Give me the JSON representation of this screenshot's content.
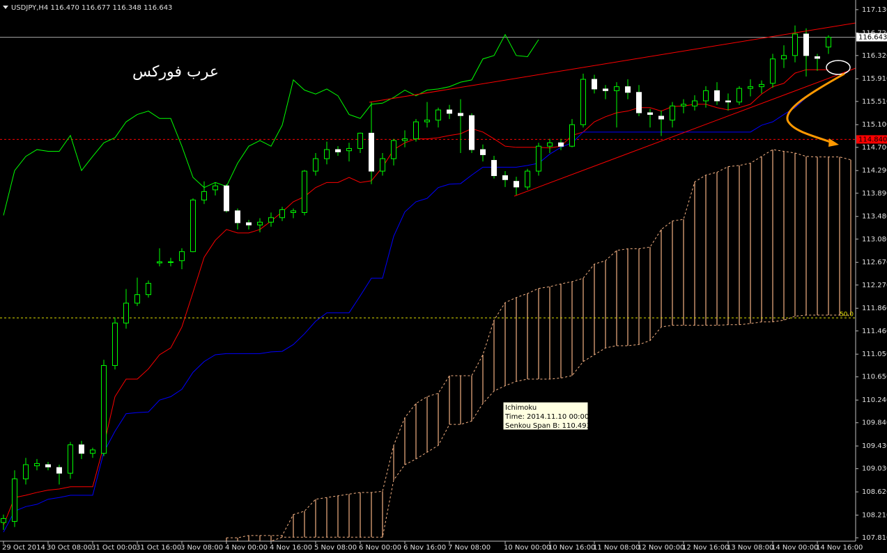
{
  "chart_data": {
    "type": "candlestick",
    "header": "USDJPY,H4  116.470 116.677 116.348 116.643",
    "annotation": "عرب فوركس",
    "tooltip": {
      "title": "Ichimoku",
      "time": "Time: 2014.11.10 00:00",
      "value": "Senkou Span B: 110.493"
    },
    "categories": [
      "29 Oct 2014",
      null,
      null,
      null,
      "30 Oct 08:00",
      null,
      null,
      null,
      "31 Oct 00:00",
      null,
      null,
      null,
      "31 Oct 16:00",
      null,
      null,
      null,
      "3 Nov 08:00",
      null,
      null,
      null,
      "4 Nov 00:00",
      null,
      null,
      null,
      "4 Nov 16:00",
      null,
      null,
      null,
      "5 Nov 08:00",
      null,
      null,
      null,
      "6 Nov 00:00",
      null,
      null,
      null,
      "6 Nov 16:00",
      null,
      null,
      null,
      "7 Nov 08:00",
      null,
      null,
      null,
      null,
      "10 Nov 00:00",
      null,
      null,
      null,
      "10 Nov 16:00",
      null,
      null,
      null,
      "11 Nov 08:00",
      null,
      null,
      null,
      "12 Nov 00:00",
      null,
      null,
      null,
      "12 Nov 16:00",
      null,
      null,
      null,
      "13 Nov 08:00",
      null,
      null,
      null,
      "14 Nov 00:00",
      null,
      null,
      null,
      "14 Nov 16:00",
      null,
      null,
      null
    ],
    "open": [
      108.08,
      108.1,
      108.85,
      109.08,
      109.1,
      109.05,
      108.95,
      109.45,
      109.3,
      109.3,
      110.85,
      111.6,
      111.95,
      112.1,
      112.66,
      112.67,
      112.7,
      112.86,
      113.77,
      113.95,
      114.02,
      113.58,
      113.37,
      113.33,
      113.38,
      113.46,
      113.55,
      113.55,
      114.28,
      114.5,
      114.66,
      114.64,
      114.68,
      114.95,
      114.28,
      114.5,
      114.82,
      114.85,
      115.15,
      115.18,
      115.36,
      115.3,
      115.26,
      114.66,
      114.47,
      114.2,
      114.1,
      114.0,
      114.28,
      114.72,
      114.78,
      114.72,
      115.1,
      115.9,
      115.73,
      115.7,
      115.77,
      115.67,
      115.31,
      115.25,
      115.18,
      115.43,
      115.43,
      115.52,
      115.7,
      115.52,
      115.5,
      115.74,
      115.77,
      115.83,
      116.26,
      116.32,
      116.7,
      116.3,
      116.47,
      null,
      null
    ],
    "high": [
      108.22,
      109.0,
      109.22,
      109.2,
      109.15,
      109.1,
      109.5,
      109.52,
      109.4,
      110.95,
      111.7,
      112.2,
      112.4,
      112.35,
      112.92,
      112.75,
      112.92,
      113.8,
      114.1,
      114.08,
      114.05,
      113.62,
      113.42,
      113.45,
      113.55,
      113.65,
      113.62,
      114.3,
      114.6,
      114.8,
      114.72,
      114.78,
      114.96,
      115.5,
      114.6,
      114.85,
      115.0,
      115.2,
      115.5,
      115.4,
      115.45,
      115.55,
      115.3,
      114.75,
      114.55,
      114.28,
      114.18,
      114.32,
      114.78,
      114.85,
      114.85,
      115.2,
      116.0,
      115.98,
      115.8,
      115.85,
      115.9,
      115.8,
      115.38,
      115.35,
      115.5,
      115.55,
      115.62,
      115.78,
      115.85,
      115.65,
      115.78,
      115.9,
      115.88,
      116.35,
      116.5,
      116.85,
      116.8,
      116.35,
      116.677,
      null,
      null
    ],
    "low": [
      107.95,
      108.0,
      108.75,
      109.0,
      109.0,
      108.75,
      108.85,
      109.2,
      109.22,
      109.25,
      110.78,
      111.5,
      111.9,
      112.05,
      112.6,
      112.6,
      112.55,
      112.85,
      113.7,
      113.85,
      113.55,
      113.25,
      113.25,
      113.2,
      113.3,
      113.4,
      113.45,
      113.5,
      114.2,
      114.4,
      114.55,
      114.45,
      114.6,
      114.05,
      114.2,
      114.38,
      114.7,
      114.8,
      115.05,
      115.05,
      115.2,
      114.6,
      114.6,
      114.45,
      114.15,
      114.0,
      113.85,
      113.95,
      114.2,
      114.6,
      114.65,
      114.7,
      115.05,
      115.65,
      115.55,
      115.05,
      115.55,
      115.25,
      115.05,
      114.9,
      115.05,
      115.3,
      115.35,
      115.4,
      115.45,
      115.35,
      115.45,
      115.6,
      115.65,
      115.75,
      116.1,
      116.2,
      115.95,
      116.05,
      116.348,
      null,
      null
    ],
    "close": [
      108.15,
      108.85,
      109.1,
      109.12,
      109.06,
      108.95,
      109.45,
      109.3,
      109.36,
      110.85,
      111.6,
      111.95,
      112.1,
      112.3,
      112.68,
      112.68,
      112.86,
      113.77,
      113.92,
      114.02,
      113.58,
      113.37,
      113.33,
      113.38,
      113.46,
      113.6,
      113.58,
      114.28,
      114.5,
      114.66,
      114.62,
      114.68,
      114.95,
      114.28,
      114.5,
      114.82,
      114.85,
      115.15,
      115.18,
      115.36,
      115.3,
      115.26,
      114.66,
      114.57,
      114.2,
      114.13,
      114.0,
      114.28,
      114.72,
      114.78,
      114.72,
      115.1,
      115.9,
      115.73,
      115.7,
      115.77,
      115.67,
      115.31,
      115.28,
      115.2,
      115.43,
      115.46,
      115.52,
      115.7,
      115.52,
      115.5,
      115.74,
      115.77,
      115.81,
      116.26,
      116.32,
      116.7,
      116.32,
      116.27,
      116.643,
      null,
      null
    ],
    "bull_color": "#00ff00",
    "bear_color": "#ffffff",
    "lines": [
      {
        "color": "#ff0000",
        "values": [
          108.03,
          108.52,
          108.56,
          108.61,
          108.65,
          108.67,
          108.71,
          108.71,
          108.71,
          109.44,
          110.3,
          110.61,
          110.61,
          110.79,
          111.04,
          111.16,
          111.53,
          112.14,
          112.76,
          113.06,
          113.25,
          113.19,
          113.19,
          113.25,
          113.4,
          113.56,
          113.74,
          113.83,
          113.99,
          114.08,
          114.08,
          114.17,
          114.08,
          114.11,
          114.35,
          114.66,
          114.78,
          114.85,
          114.85,
          114.87,
          114.91,
          114.94,
          115.03,
          114.97,
          114.85,
          114.72,
          114.7,
          114.7,
          114.7,
          114.69,
          114.72,
          114.91,
          114.97,
          115.15,
          115.24,
          115.31,
          115.34,
          115.4,
          115.4,
          115.34,
          115.42,
          115.43,
          115.46,
          115.46,
          115.4,
          115.36,
          115.4,
          115.46,
          115.64,
          115.77,
          115.83,
          116.01,
          116.07,
          116.07,
          116.07,
          null,
          null
        ]
      },
      {
        "color": "#0000ff",
        "values": [
          107.91,
          108.28,
          108.36,
          108.4,
          108.49,
          108.52,
          108.56,
          108.56,
          108.56,
          109.32,
          109.69,
          110.0,
          110.02,
          110.03,
          110.24,
          110.3,
          110.43,
          110.73,
          110.92,
          111.04,
          111.06,
          111.06,
          111.06,
          111.06,
          111.09,
          111.1,
          111.22,
          111.41,
          111.63,
          111.78,
          111.78,
          111.78,
          112.08,
          112.39,
          112.39,
          113.13,
          113.56,
          113.74,
          113.8,
          113.99,
          114.05,
          114.06,
          114.21,
          114.35,
          114.35,
          114.35,
          114.35,
          114.38,
          114.42,
          114.58,
          114.7,
          114.78,
          114.97,
          114.97,
          114.97,
          114.97,
          114.97,
          114.97,
          114.97,
          114.97,
          114.97,
          114.97,
          114.97,
          114.97,
          114.97,
          114.97,
          114.97,
          114.97,
          115.09,
          115.15,
          115.28,
          115.4,
          115.58,
          115.73,
          115.85,
          null,
          null
        ]
      },
      {
        "color": "#00ff00",
        "values": [
          113.5,
          114.29,
          114.54,
          114.66,
          114.63,
          114.63,
          114.91,
          114.29,
          114.54,
          114.78,
          114.87,
          115.15,
          115.28,
          115.34,
          115.21,
          115.21,
          114.72,
          114.17,
          113.99,
          114.08,
          114.01,
          114.42,
          114.72,
          114.82,
          114.72,
          115.09,
          115.89,
          115.71,
          115.64,
          115.73,
          115.61,
          115.28,
          115.21,
          115.46,
          115.48,
          115.58,
          115.71,
          115.61,
          115.71,
          115.73,
          115.77,
          115.85,
          115.89,
          116.26,
          116.32,
          116.69,
          116.32,
          116.3,
          116.6,
          null,
          null,
          null,
          null,
          null,
          null,
          null,
          null,
          null,
          null,
          null,
          null,
          null,
          null,
          null,
          null,
          null,
          null,
          null,
          null,
          null,
          null,
          null,
          null,
          null,
          null,
          null,
          null
        ]
      }
    ],
    "cloud": {
      "color": "#f4b183",
      "span_a": [
        null,
        null,
        null,
        null,
        null,
        null,
        null,
        null,
        null,
        null,
        null,
        null,
        null,
        null,
        null,
        null,
        null,
        null,
        null,
        null,
        107.81,
        107.81,
        107.85,
        107.85,
        107.85,
        107.85,
        108.22,
        108.28,
        108.49,
        108.52,
        108.55,
        108.58,
        108.61,
        108.61,
        108.63,
        109.44,
        109.93,
        110.18,
        110.3,
        110.36,
        110.67,
        110.67,
        110.67,
        111.04,
        111.65,
        111.96,
        112.05,
        112.12,
        112.21,
        112.24,
        112.29,
        112.33,
        112.39,
        112.64,
        112.7,
        112.88,
        112.91,
        112.91,
        112.94,
        113.25,
        113.4,
        113.43,
        114.09,
        114.21,
        114.26,
        114.36,
        114.38,
        114.42,
        114.54,
        114.66,
        114.63,
        114.6,
        114.54,
        114.53,
        114.53,
        114.53,
        114.48
      ],
      "span_b": [
        null,
        null,
        null,
        null,
        null,
        null,
        null,
        null,
        null,
        null,
        null,
        null,
        null,
        null,
        null,
        null,
        null,
        null,
        null,
        null,
        107.72,
        107.75,
        107.75,
        107.75,
        107.75,
        107.82,
        107.82,
        107.82,
        107.82,
        107.82,
        107.82,
        107.82,
        107.82,
        107.82,
        107.82,
        108.83,
        109.1,
        109.2,
        109.32,
        109.44,
        109.81,
        109.81,
        109.87,
        110.18,
        110.4,
        110.493,
        110.57,
        110.61,
        110.61,
        110.61,
        110.63,
        110.67,
        110.92,
        111.04,
        111.16,
        111.2,
        111.2,
        111.22,
        111.29,
        111.53,
        111.56,
        111.56,
        111.56,
        111.56,
        111.56,
        111.57,
        111.57,
        111.59,
        111.62,
        111.62,
        111.65,
        111.72,
        111.74,
        111.74,
        111.74,
        111.74,
        111.74
      ]
    },
    "hlines": [
      {
        "value": 116.643,
        "color": "#a0a0a0",
        "box_color": "#ffffff",
        "dashed": false
      },
      {
        "value": 114.84,
        "label": "114.840",
        "color": "#ff0000",
        "box_color": "#ff0000",
        "dashed": true
      },
      {
        "value": 111.69,
        "label": "50.0",
        "color": "#e0e000",
        "dashed": true
      }
    ],
    "ylim": [
      107.75,
      117.3
    ],
    "yticks": [
      {
        "value": 117.13,
        "label": "117.130"
      },
      {
        "value": 116.72,
        "label": "116.720"
      },
      {
        "value": 116.32,
        "label": "116.320"
      },
      {
        "value": 115.91,
        "label": "115.910"
      },
      {
        "value": 115.51,
        "label": "115.510"
      },
      {
        "value": 115.1,
        "label": "115.100"
      },
      {
        "value": 114.7,
        "label": "114.700"
      },
      {
        "value": 114.29,
        "label": "114.290"
      },
      {
        "value": 113.89,
        "label": "113.890"
      },
      {
        "value": 113.48,
        "label": "113.480"
      },
      {
        "value": 113.08,
        "label": "113.080"
      },
      {
        "value": 112.67,
        "label": "112.670"
      },
      {
        "value": 112.27,
        "label": "112.270"
      },
      {
        "value": 111.86,
        "label": "111.860"
      },
      {
        "value": 111.46,
        "label": "111.460"
      },
      {
        "value": 111.05,
        "label": "111.050"
      },
      {
        "value": 110.65,
        "label": "110.650"
      },
      {
        "value": 110.24,
        "label": "110.240"
      },
      {
        "value": 109.84,
        "label": "109.840"
      },
      {
        "value": 109.43,
        "label": "109.430"
      },
      {
        "value": 109.03,
        "label": "109.030"
      },
      {
        "value": 108.62,
        "label": "108.620"
      },
      {
        "value": 108.21,
        "label": "108.210"
      },
      {
        "value": 107.81,
        "label": "107.810"
      }
    ],
    "grid": false
  }
}
